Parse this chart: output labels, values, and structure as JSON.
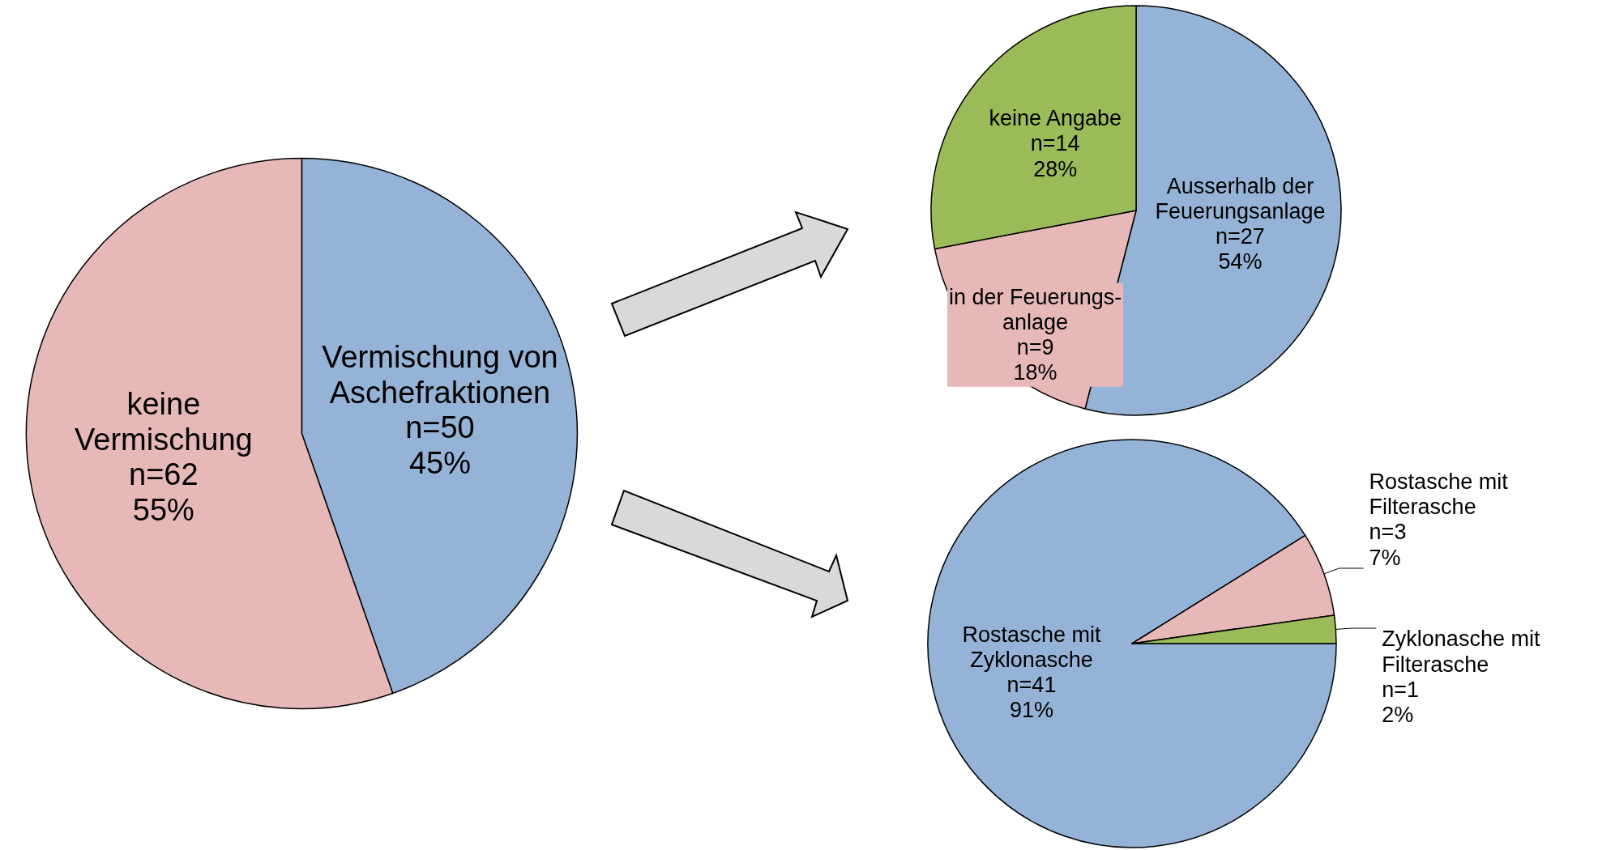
{
  "chart_data": [
    {
      "type": "pie",
      "categories": [
        "Vermischung von\nAschefraktionen",
        "keine\nVermischung"
      ],
      "values": [
        50,
        62
      ],
      "value_labels": [
        "n=50\n45%",
        "n=62\n55%"
      ],
      "colors": [
        "#95b3d7",
        "#e6b9b8"
      ]
    },
    {
      "type": "pie",
      "categories": [
        "Ausserhalb der\nFeuerungsanlage",
        "in der Feuerungs-\nanlage",
        "keine Angabe"
      ],
      "values": [
        27,
        9,
        14
      ],
      "value_labels": [
        "n=27\n54%",
        "n=9\n18%",
        "n=14\n28%"
      ],
      "colors": [
        "#95b3d7",
        "#e6b9b8",
        "#9bbb59"
      ]
    },
    {
      "type": "pie",
      "categories": [
        "Rostasche mit\nZyklonasche",
        "Rostasche mit\nFilterasche",
        "Zyklonasche mit\nFilterasche"
      ],
      "values": [
        41,
        3,
        1
      ],
      "value_labels": [
        "n=41\n91%",
        "n=3\n7%",
        "n=1\n2%"
      ],
      "colors": [
        "#95b3d7",
        "#e6b9b8",
        "#9bbb59"
      ]
    }
  ]
}
